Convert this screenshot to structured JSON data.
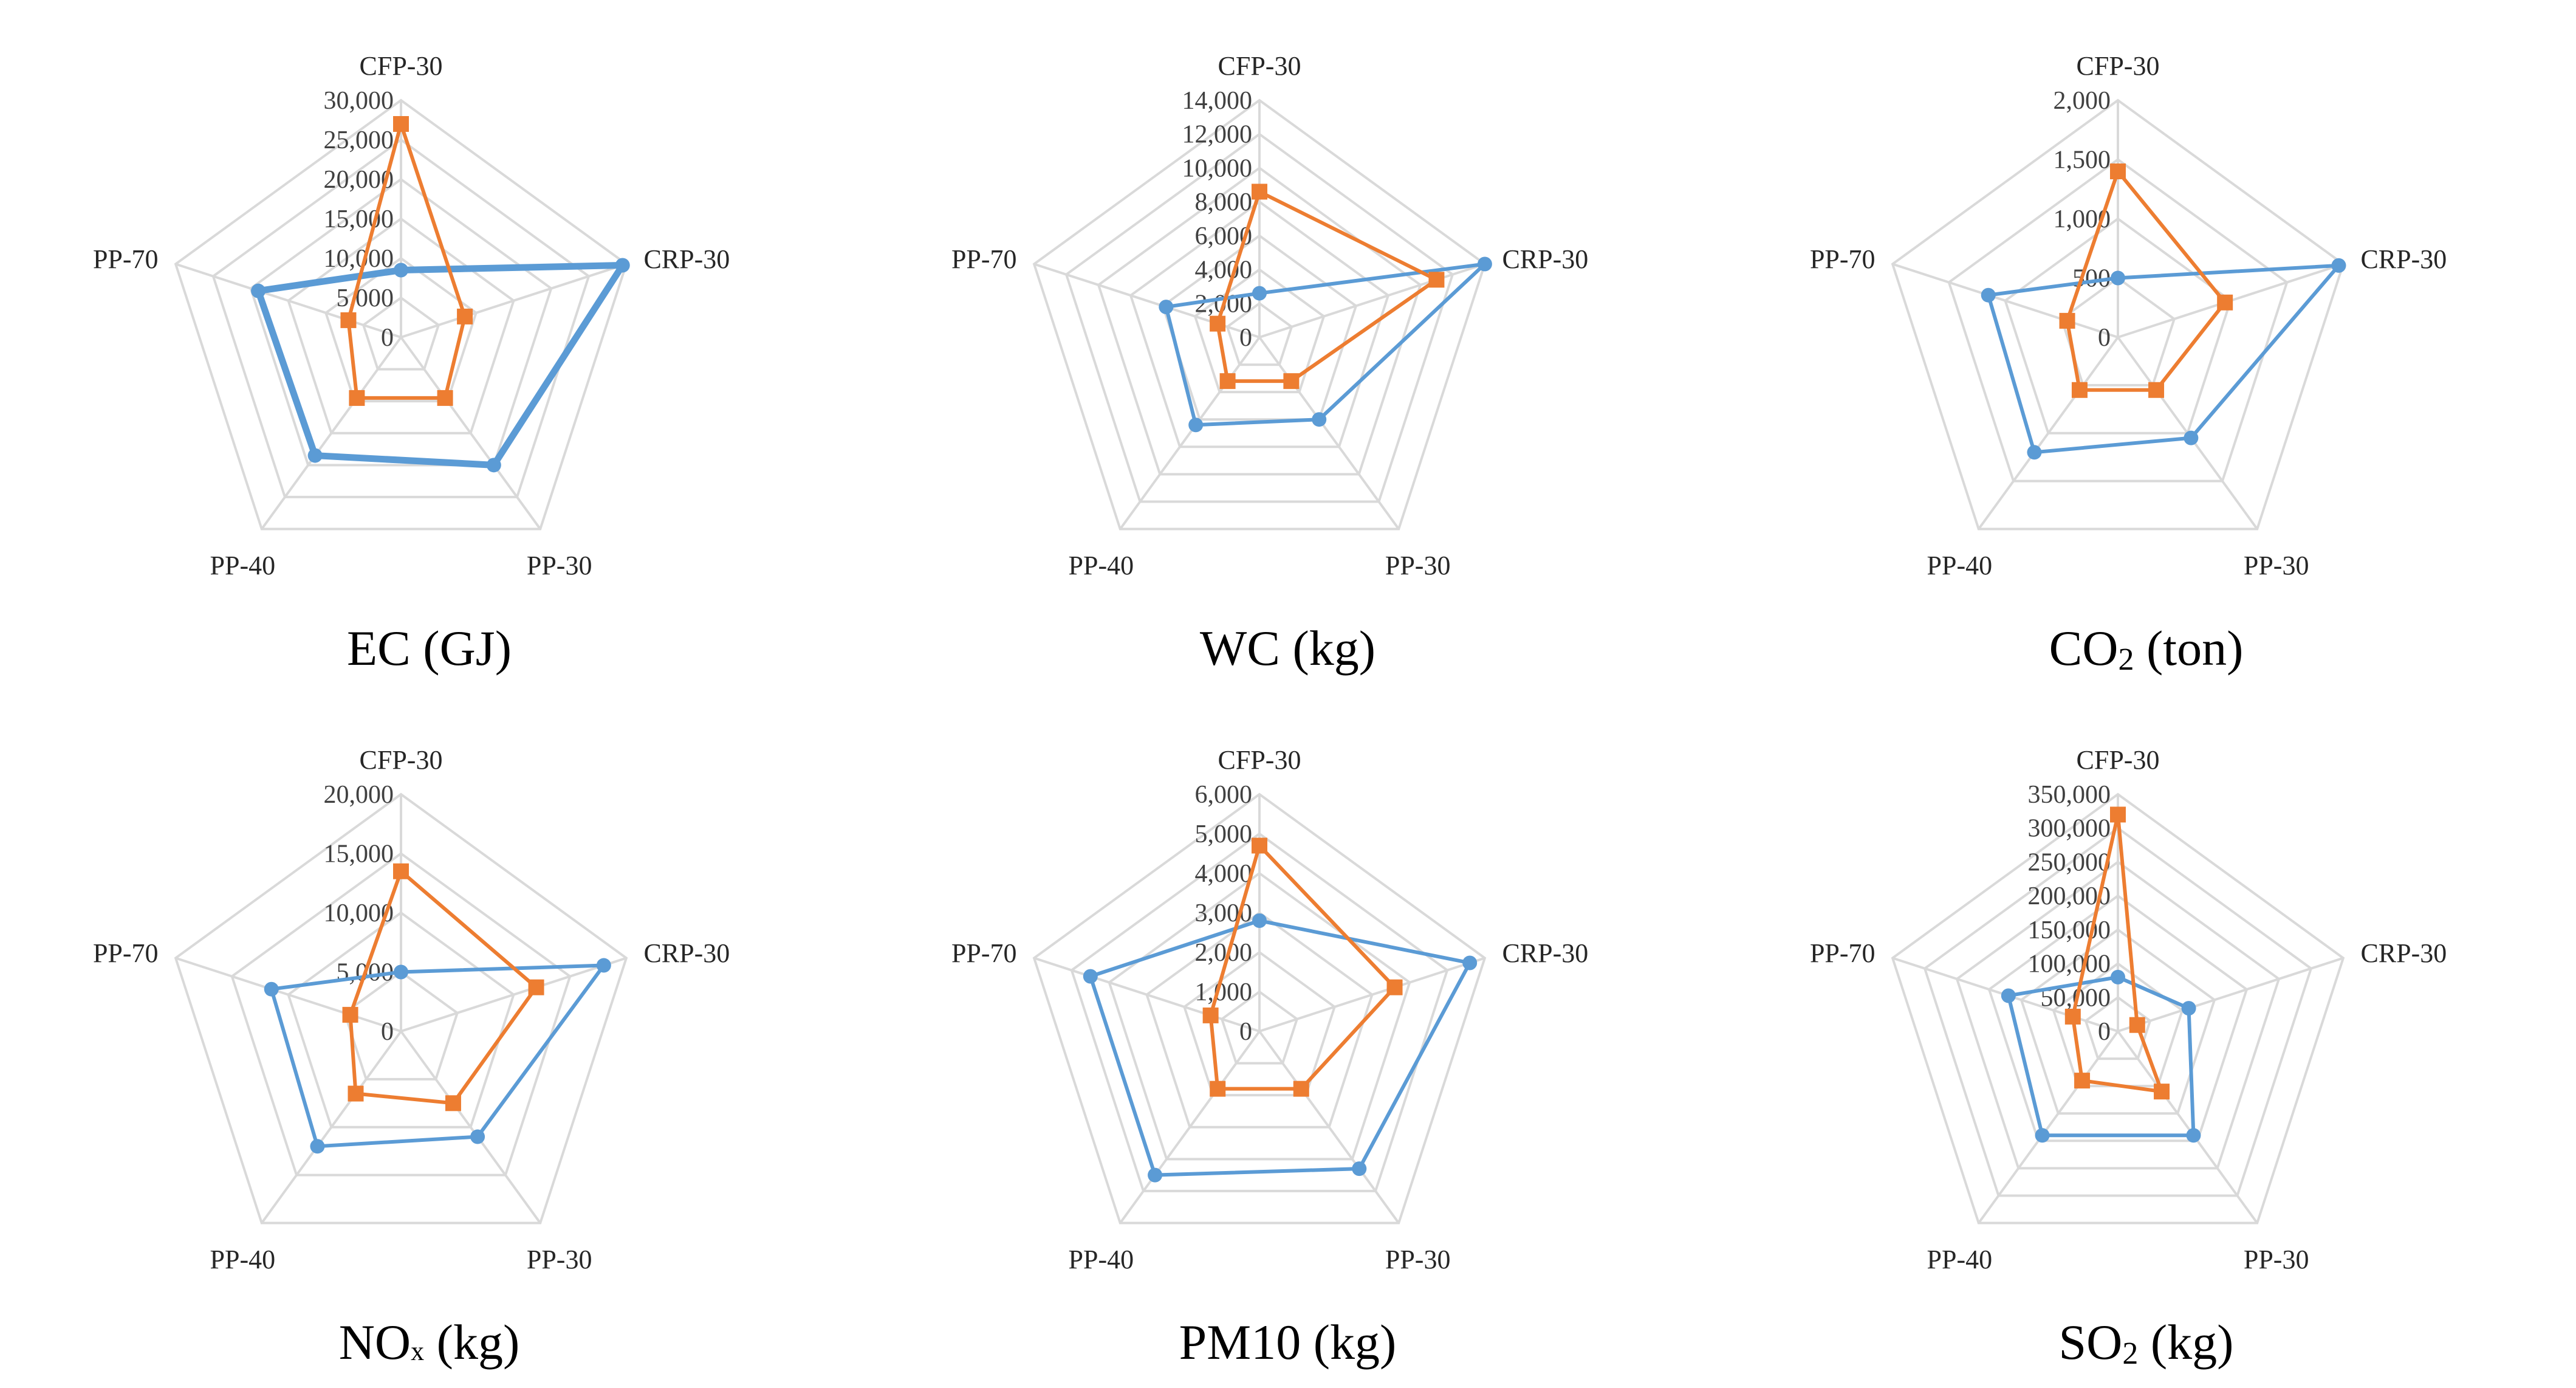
{
  "colors": {
    "series_a": "#5b9bd5",
    "series_b": "#ed7d31",
    "grid": "#d9d9d9"
  },
  "chart_data": [
    {
      "type": "radar",
      "title_main": "EC (GJ)",
      "title_sub": "",
      "axes": [
        "CFP-30",
        "CRP-30",
        "PP-30",
        "PP-40",
        "PP-70"
      ],
      "ticks": [
        "0",
        "5,000",
        "10,000",
        "15,000",
        "20,000",
        "25,000",
        "30,000"
      ],
      "rmax": 30000,
      "rings": 6,
      "series": [
        {
          "values": [
            8500,
            29500,
            20000,
            18500,
            19000
          ],
          "marker": "circle",
          "color": "#5b9bd5",
          "width": 3
        },
        {
          "values": [
            27000,
            8500,
            9500,
            9500,
            7000
          ],
          "marker": "square",
          "color": "#ed7d31",
          "width": 1
        }
      ]
    },
    {
      "type": "radar",
      "title_main": "WC (kg)",
      "title_sub": "",
      "axes": [
        "CFP-30",
        "CRP-30",
        "PP-30",
        "PP-40",
        "PP-70"
      ],
      "ticks": [
        "0",
        "2,000",
        "4,000",
        "6,000",
        "8,000",
        "10,000",
        "12,000",
        "14,000"
      ],
      "rmax": 14000,
      "rings": 7,
      "series": [
        {
          "values": [
            2600,
            14000,
            6000,
            6400,
            5800
          ],
          "marker": "circle",
          "color": "#5b9bd5",
          "width": 1
        },
        {
          "values": [
            8600,
            11000,
            3200,
            3200,
            2600
          ],
          "marker": "square",
          "color": "#ed7d31",
          "width": 1
        }
      ]
    },
    {
      "type": "radar",
      "title_main": "CO",
      "title_sub": "2",
      "title_rest": " (ton)",
      "axes": [
        "CFP-30",
        "CRP-30",
        "PP-30",
        "PP-40",
        "PP-70"
      ],
      "ticks": [
        "0",
        "500",
        "1,000",
        "1,500",
        "2,000"
      ],
      "rmax": 2000,
      "rings": 4,
      "series": [
        {
          "values": [
            500,
            1960,
            1050,
            1200,
            1150
          ],
          "marker": "circle",
          "color": "#5b9bd5",
          "width": 1
        },
        {
          "values": [
            1400,
            950,
            550,
            550,
            450
          ],
          "marker": "square",
          "color": "#ed7d31",
          "width": 1
        }
      ]
    },
    {
      "type": "radar",
      "title_main": "NO",
      "title_sub": "x",
      "title_rest": " (kg)",
      "axes": [
        "CFP-30",
        "CRP-30",
        "PP-30",
        "PP-40",
        "PP-70"
      ],
      "ticks": [
        "0",
        "5,000",
        "10,000",
        "15,000",
        "20,000"
      ],
      "rmax": 20000,
      "rings": 4,
      "series": [
        {
          "values": [
            5000,
            18000,
            11000,
            12000,
            11500
          ],
          "marker": "circle",
          "color": "#5b9bd5",
          "width": 1
        },
        {
          "values": [
            13500,
            12000,
            7500,
            6500,
            4500
          ],
          "marker": "square",
          "color": "#ed7d31",
          "width": 1
        }
      ]
    },
    {
      "type": "radar",
      "title_main": "PM10 (kg)",
      "title_sub": "",
      "axes": [
        "CFP-30",
        "CRP-30",
        "PP-30",
        "PP-40",
        "PP-70"
      ],
      "ticks": [
        "0",
        "1,000",
        "2,000",
        "3,000",
        "4,000",
        "5,000",
        "6,000"
      ],
      "rmax": 6000,
      "rings": 6,
      "series": [
        {
          "values": [
            2800,
            5600,
            4300,
            4500,
            4500
          ],
          "marker": "circle",
          "color": "#5b9bd5",
          "width": 1
        },
        {
          "values": [
            4700,
            3600,
            1800,
            1800,
            1300
          ],
          "marker": "square",
          "color": "#ed7d31",
          "width": 1
        }
      ]
    },
    {
      "type": "radar",
      "title_main": "SO",
      "title_sub": "2",
      "title_rest": " (kg)",
      "axes": [
        "CFP-30",
        "CRP-30",
        "PP-30",
        "PP-40",
        "PP-70"
      ],
      "ticks": [
        "0",
        "50,000",
        "100,000",
        "150,000",
        "200,000",
        "250,000",
        "300,000",
        "350,000"
      ],
      "rmax": 350000,
      "rings": 7,
      "series": [
        {
          "values": [
            80000,
            110000,
            190000,
            190000,
            170000
          ],
          "marker": "circle",
          "color": "#5b9bd5",
          "width": 1
        },
        {
          "values": [
            320000,
            30000,
            110000,
            90000,
            70000
          ],
          "marker": "square",
          "color": "#ed7d31",
          "width": 1
        }
      ]
    }
  ]
}
